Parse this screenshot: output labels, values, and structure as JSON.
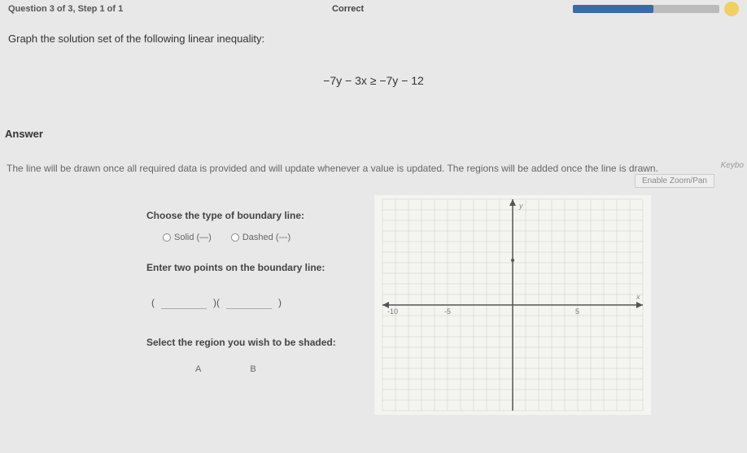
{
  "topbar": {
    "left": "Question 3 of 3, Step 1 of 1",
    "center": "Correct",
    "progress_pct": 55
  },
  "prompt": "Graph the solution set of the following linear inequality:",
  "equation": "−7y − 3x ≥ −7y − 12",
  "answer_label": "Answer",
  "keys_hint": "Keybo",
  "instruction": "The line will be drawn once all required data is provided and will update whenever a value is updated. The regions will be added once the line is drawn.",
  "controls": {
    "boundary_label": "Choose the type of boundary line:",
    "solid_label": "Solid (—)",
    "dashed_label": "Dashed (---)",
    "points_label": "Enter two points on the boundary line:",
    "paren_open": "(",
    "paren_sep": ")(",
    "paren_close": ")",
    "shade_label": "Select the region you wish to be shaded:",
    "option_a": "A",
    "option_b": "B"
  },
  "graph": {
    "zoom_label": "Enable Zoom/Pan",
    "background": "#f4f4f0",
    "grid_color": "#cccccc",
    "axis_color": "#555555",
    "arrow_color": "#555555",
    "xlim": [
      -10,
      10
    ],
    "ylim": [
      -10,
      10
    ],
    "tick_neg10": "-10",
    "tick_neg5": "-5",
    "tick_5": "5",
    "label_y": "y",
    "label_x": "x"
  }
}
